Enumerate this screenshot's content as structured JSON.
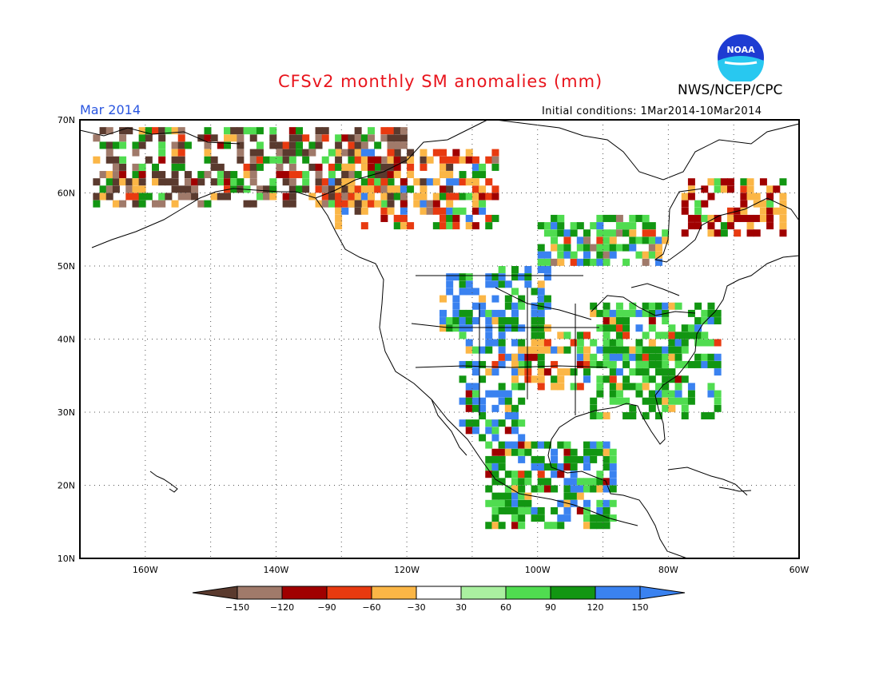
{
  "header": {
    "title": "CFSv2 monthly SM anomalies (mm)",
    "agency": "NWS/NCEP/CPC",
    "logo_text": "NOAA",
    "period": "Mar 2014",
    "initial_conditions": "Initial conditions: 1Mar2014-10Mar2014"
  },
  "map": {
    "lat_labels": [
      "70N",
      "60N",
      "50N",
      "40N",
      "30N",
      "20N",
      "10N"
    ],
    "lon_labels": [
      "160W",
      "140W",
      "120W",
      "100W",
      "80W",
      "60W"
    ],
    "lat_range": [
      10,
      70
    ],
    "lon_range": [
      -170,
      -60
    ],
    "grid": "dotted"
  },
  "legend": {
    "labels": [
      "-150",
      "-120",
      "-90",
      "-60",
      "-30",
      "30",
      "60",
      "90",
      "120",
      "150"
    ],
    "colors": [
      "#5a3a2e",
      "#a07a6a",
      "#a00000",
      "#e83a10",
      "#fbb646",
      "#ffffff",
      "#aaf0a0",
      "#50dc50",
      "#129612",
      "#3a82f0",
      "#3a82f0"
    ]
  },
  "colors": {
    "title": "#e8141c",
    "period": "#2a56e0",
    "noaa_blue": "#1e3cd2",
    "noaa_cyan": "#28c8f0"
  }
}
